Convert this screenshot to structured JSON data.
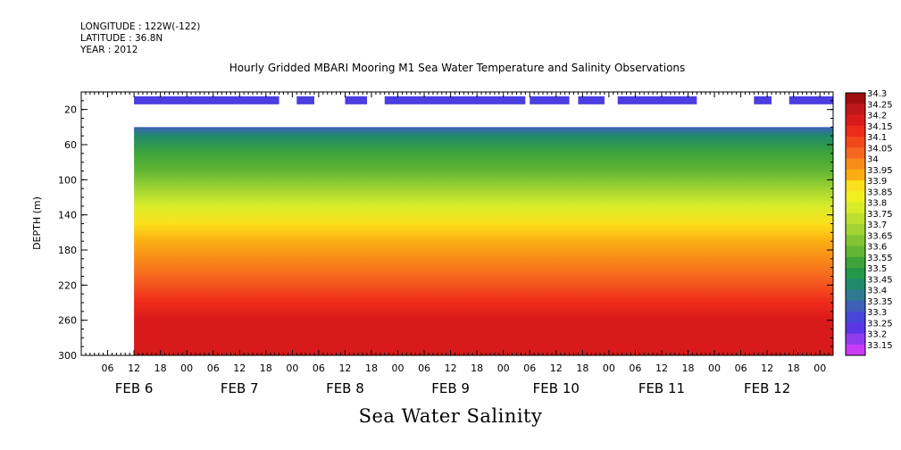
{
  "header": {
    "longitude": "LONGITUDE : 122W(-122)",
    "latitude": "LATITUDE : 36.8N",
    "year": "YEAR : 2012"
  },
  "chart_data": {
    "type": "heatmap",
    "title": "Hourly Gridded MBARI Mooring M1 Sea Water Temperature and Salinity Observations",
    "xlabel": "Sea Water Salinity",
    "ylabel": "DEPTH (m)",
    "ylim": [
      300,
      0
    ],
    "y_ticks": [
      20,
      60,
      100,
      140,
      180,
      220,
      260,
      300
    ],
    "x_hour_ticks": [
      "06",
      "12",
      "18",
      "00",
      "06",
      "12",
      "18",
      "00",
      "06",
      "12",
      "18",
      "00",
      "06",
      "12",
      "18",
      "00",
      "06",
      "12",
      "18",
      "00",
      "06",
      "12",
      "18",
      "00",
      "06",
      "12",
      "18",
      "00"
    ],
    "x_day_labels": [
      "FEB  6",
      "FEB  7",
      "FEB  8",
      "FEB  9",
      "FEB 10",
      "FEB 11",
      "FEB 12"
    ],
    "x_range_hours": [
      "2012-02-06T00:00",
      "2012-02-13T03:00"
    ],
    "data_start": "2012-02-06T12:00",
    "surface_segments": [
      [
        "2012-02-06T12:00",
        "2012-02-07T21:00"
      ],
      [
        "2012-02-08T01:00",
        "2012-02-08T05:00"
      ],
      [
        "2012-02-08T12:00",
        "2012-02-08T17:00"
      ],
      [
        "2012-02-08T21:00",
        "2012-02-10T05:00"
      ],
      [
        "2012-02-10T06:00",
        "2012-02-10T15:00"
      ],
      [
        "2012-02-10T17:00",
        "2012-02-10T23:00"
      ],
      [
        "2012-02-11T02:00",
        "2012-02-11T20:00"
      ],
      [
        "2012-02-12T09:00",
        "2012-02-12T13:00"
      ],
      [
        "2012-02-12T17:00",
        "2012-02-13T03:00"
      ]
    ],
    "surface_depth": 10,
    "data_top_depth": 40,
    "salinity_profile": [
      {
        "depth": 40,
        "salinity": 33.35
      },
      {
        "depth": 50,
        "salinity": 33.45
      },
      {
        "depth": 70,
        "salinity": 33.55
      },
      {
        "depth": 90,
        "salinity": 33.62
      },
      {
        "depth": 110,
        "salinity": 33.72
      },
      {
        "depth": 130,
        "salinity": 33.82
      },
      {
        "depth": 150,
        "salinity": 33.88
      },
      {
        "depth": 170,
        "salinity": 33.93
      },
      {
        "depth": 190,
        "salinity": 33.98
      },
      {
        "depth": 210,
        "salinity": 34.05
      },
      {
        "depth": 225,
        "salinity": 34.1
      },
      {
        "depth": 240,
        "salinity": 34.15
      },
      {
        "depth": 260,
        "salinity": 34.2
      },
      {
        "depth": 300,
        "salinity": 34.2
      }
    ],
    "colorbar": {
      "labels": [
        "34.3",
        "34.25",
        "34.2",
        "34.15",
        "34.1",
        "34.05",
        "34",
        "33.95",
        "33.9",
        "33.85",
        "33.8",
        "33.75",
        "33.7",
        "33.65",
        "33.6",
        "33.55",
        "33.5",
        "33.45",
        "33.4",
        "33.35",
        "33.3",
        "33.25",
        "33.2",
        "33.15"
      ],
      "colors": [
        "#a01010",
        "#c01818",
        "#d81a1a",
        "#ee2a1a",
        "#f2481c",
        "#f5661e",
        "#f98c18",
        "#fbae14",
        "#fce01c",
        "#f0ef20",
        "#d9ec2a",
        "#bce030",
        "#9fd432",
        "#83c434",
        "#62b634",
        "#3fa33a",
        "#239848",
        "#1f8a6c",
        "#2f7a92",
        "#3e60b8",
        "#4846d8",
        "#5a36e6",
        "#8f3cf0",
        "#c83cf6"
      ]
    }
  }
}
